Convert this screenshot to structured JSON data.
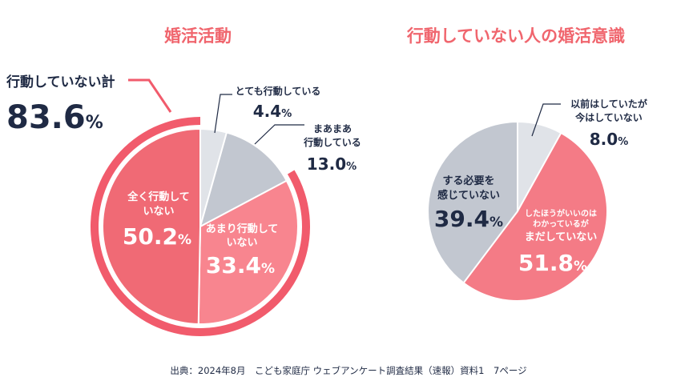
{
  "source": "出典：2024年8月　こども家庭庁 ウェブアンケート調査結果（速報）資料1　7ページ",
  "chart_data": [
    {
      "type": "pie",
      "title": "婚活活動",
      "ring_label": "行動していない計",
      "ring_value": 83.6,
      "slices": [
        {
          "label": "とても行動している",
          "value": 4.4,
          "color": "#e0e3e8"
        },
        {
          "label": "まあまあ行動している",
          "value": 13.0,
          "color": "#c2c7d0"
        },
        {
          "label": "あまり行動していない",
          "value": 33.4,
          "color": "#f8858f"
        },
        {
          "label": "全く行動していない",
          "value": 50.2,
          "color": "#f06a75"
        }
      ]
    },
    {
      "type": "pie",
      "title": "行動していない人の婚活意識",
      "slices": [
        {
          "label": "以前はしていたが今はしていない",
          "value": 8.0,
          "color": "#e0e3e8"
        },
        {
          "label": "したほうがいいのはわかっているがまだしていない",
          "value": 51.8,
          "color": "#f47b86"
        },
        {
          "label": "する必要を感じていない",
          "value": 39.4,
          "color": "#c2c7d0"
        }
      ]
    }
  ],
  "labels": {
    "title1": "婚活活動",
    "title2": "行動していない人の婚活意識",
    "ring_label": "行動していない計",
    "ring_value": "83.6",
    "pct": "%",
    "c1_s0_l1": "とても行動している",
    "c1_s0_v": "4.4",
    "c1_s1_l1": "まあまあ",
    "c1_s1_l2": "行動している",
    "c1_s1_v": "13.0",
    "c1_s2_l1": "あまり行動して",
    "c1_s2_l2": "いない",
    "c1_s2_v": "33.4",
    "c1_s3_l1": "全く行動して",
    "c1_s3_l2": "いない",
    "c1_s3_v": "50.2",
    "c2_s0_l1": "以前はしていたが",
    "c2_s0_l2": "今はしていない",
    "c2_s0_v": "8.0",
    "c2_s1_l1": "したほうがいいのは",
    "c2_s1_l2": "わかっているが",
    "c2_s1_l3": "まだしていない",
    "c2_s1_v": "51.8",
    "c2_s2_l1": "する必要を",
    "c2_s2_l2": "感じていない",
    "c2_s2_v": "39.4"
  }
}
